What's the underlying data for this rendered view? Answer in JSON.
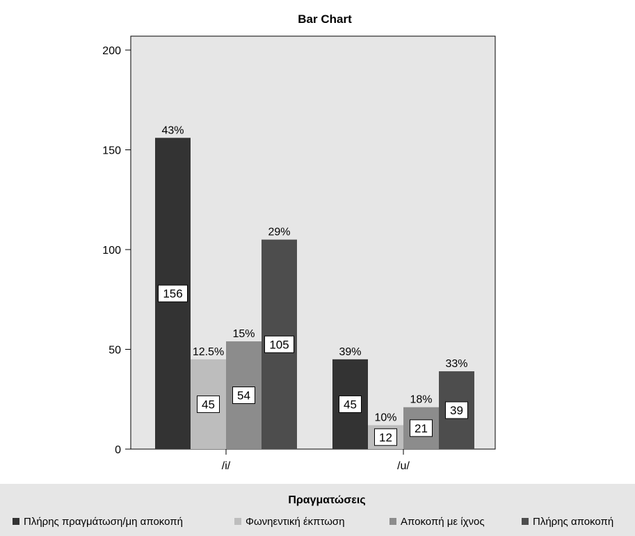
{
  "chart_data": {
    "type": "bar",
    "title": "Bar Chart",
    "categories": [
      "/i/",
      "/u/"
    ],
    "ylim": [
      0,
      200
    ],
    "yticks": [
      0,
      50,
      100,
      150,
      200
    ],
    "grid": false,
    "legend": {
      "title": "Πραγματώσεις",
      "position": "bottom"
    },
    "series": [
      {
        "name": "Πλήρης πραγμάτωση/μη αποκοπή",
        "color": "#333333",
        "values": [
          156,
          45
        ],
        "percent_labels": [
          "43%",
          "39%"
        ]
      },
      {
        "name": "Φωνηεντική έκπτωση",
        "color": "#bdbdbd",
        "values": [
          45,
          12
        ],
        "percent_labels": [
          "12.5%",
          "10%"
        ]
      },
      {
        "name": "Αποκοπή με ίχνος",
        "color": "#8c8c8c",
        "values": [
          54,
          21
        ],
        "percent_labels": [
          "15%",
          "18%"
        ]
      },
      {
        "name": "Πλήρης αποκοπή",
        "color": "#4d4d4d",
        "values": [
          105,
          39
        ],
        "percent_labels": [
          "29%",
          "33%"
        ]
      }
    ]
  }
}
